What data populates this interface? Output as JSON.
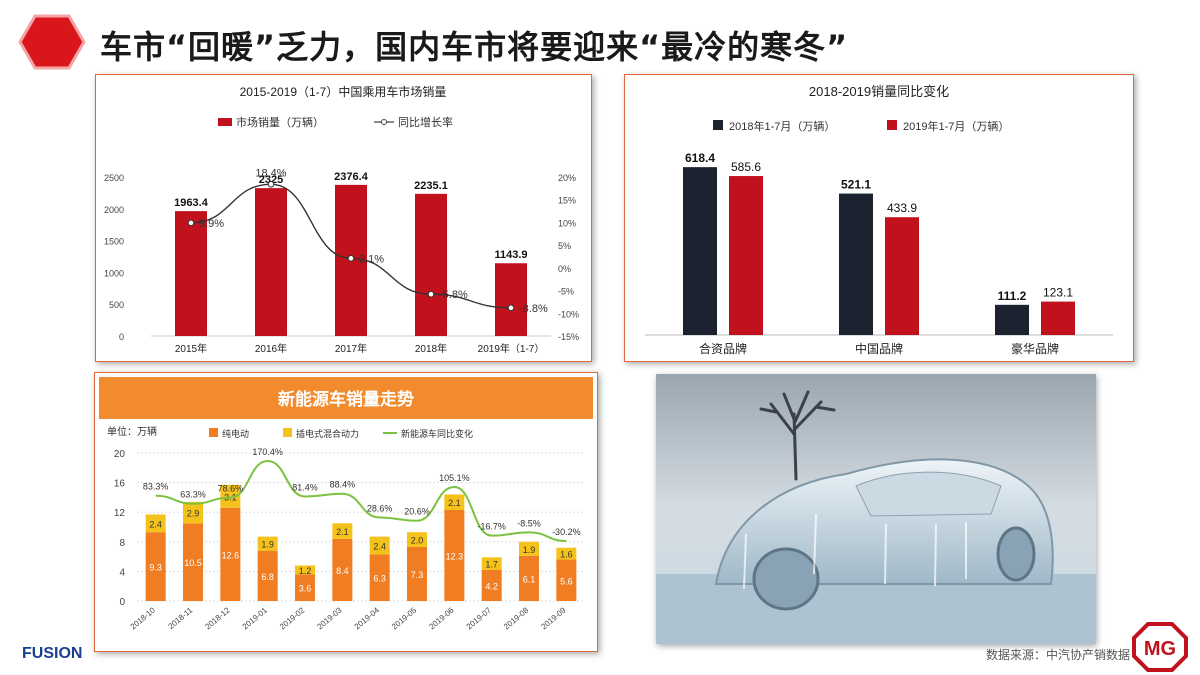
{
  "page": {
    "title": "车市“回暖”乏力，国内车市将要迎来“最冷的寒冬”",
    "source": "数据来源：中汽协产销数据",
    "brand_logo_text": "FUSION",
    "mg_logo_text": "MG"
  },
  "colors": {
    "accent_red": "#c0111c",
    "dark_navy": "#1c2230",
    "orange_header": "#f28a2e",
    "bev_orange": "#f07d22",
    "phev_yellow": "#f5c21b",
    "growth_green": "#7cc242",
    "panel_border": "#e0683a"
  },
  "chart_data": [
    {
      "type": "bar",
      "title": "2015-2019（1-7）中国乘用车市场销量",
      "categories": [
        "2015年",
        "2016年",
        "2017年",
        "2018年",
        "2019年（1-7）"
      ],
      "series": [
        {
          "name": "市场销量（万辆）",
          "values": [
            1963.4,
            2325,
            2376.4,
            2235.1,
            1143.9
          ],
          "axis": "left",
          "color": "#c0111c"
        },
        {
          "name": "同比增长率",
          "values": [
            9.9,
            18.4,
            2.1,
            -5.8,
            -8.8
          ],
          "value_labels": [
            "9.9%",
            "18.4%",
            "2.1%",
            "-5.8%",
            "-8.8%"
          ],
          "axis": "right",
          "type": "line",
          "color": "#333333"
        }
      ],
      "bar_labels": [
        "1963.4",
        "2325",
        "2376.4",
        "2235.1",
        "1143.9"
      ],
      "y_left_ticks": [
        "0",
        "500",
        "1000",
        "1500",
        "2000",
        "2500"
      ],
      "y_right_ticks": [
        "-15%",
        "-10%",
        "-5%",
        "0%",
        "5%",
        "10%",
        "15%",
        "20%"
      ],
      "ylim_left": [
        0,
        2500
      ],
      "ylim_right": [
        -15,
        20
      ],
      "legend_position": "top"
    },
    {
      "type": "bar",
      "title": "2018-2019销量同比变化",
      "categories": [
        "合资品牌",
        "中国品牌",
        "豪华品牌"
      ],
      "series": [
        {
          "name": "2018年1-7月（万辆）",
          "values": [
            618.4,
            521.1,
            111.2
          ],
          "value_labels": [
            "618.4",
            "521.1",
            "111.2"
          ],
          "color": "#1c2230"
        },
        {
          "name": "2019年1-7月（万辆）",
          "values": [
            585.6,
            433.9,
            123.1
          ],
          "value_labels": [
            "585.6",
            "433.9",
            "123.1"
          ],
          "color": "#c0111c"
        }
      ],
      "ylim": [
        0,
        700
      ],
      "legend_position": "top"
    },
    {
      "type": "bar",
      "title": "新能源车销量走势",
      "unit_label": "单位：万辆",
      "categories": [
        "2018-10",
        "2018-11",
        "2018-12",
        "2019-01",
        "2019-02",
        "2019-03",
        "2019-04",
        "2019-05",
        "2019-06",
        "2019-07",
        "2019-08",
        "2019-09"
      ],
      "series": [
        {
          "name": "纯电动",
          "values": [
            9.3,
            10.5,
            12.6,
            6.8,
            3.6,
            8.4,
            6.3,
            7.3,
            12.3,
            4.2,
            6.1,
            5.6
          ],
          "value_labels": [
            "9.3",
            "10.5",
            "12.6",
            "6.8",
            "3.6",
            "8.4",
            "6.3",
            "7.3",
            "12.3",
            "4.2",
            "6.1",
            "5.6"
          ],
          "stack": "total",
          "color": "#f07d22"
        },
        {
          "name": "插电式混合动力",
          "values": [
            2.4,
            2.9,
            3.1,
            1.9,
            1.2,
            2.1,
            2.4,
            2.0,
            2.1,
            1.7,
            1.9,
            1.6
          ],
          "value_labels": [
            "2.4",
            "2.9",
            "3.1",
            "1.9",
            "1.2",
            "2.1",
            "2.4",
            "2.0",
            "2.1",
            "1.7",
            "1.9",
            "1.6"
          ],
          "stack": "total",
          "color": "#f5c21b"
        },
        {
          "name": "新能源车同比变化",
          "type": "line",
          "values": [
            83.3,
            63.3,
            78.6,
            170.4,
            81.4,
            88.4,
            28.6,
            20.6,
            105.1,
            -16.7,
            -8.5,
            -30.2
          ],
          "value_labels": [
            "83.3%",
            "63.3%",
            "78.6%",
            "170.4%",
            "81.4%",
            "88.4%",
            "28.6%",
            "20.6%",
            "105.1%",
            "-16.7%",
            "-8.5%",
            "-30.2%"
          ],
          "color": "#7cc242"
        }
      ],
      "y_ticks": [
        "0",
        "4",
        "8",
        "12",
        "16",
        "20"
      ],
      "ylim": [
        0,
        20
      ],
      "legend_position": "top"
    }
  ]
}
